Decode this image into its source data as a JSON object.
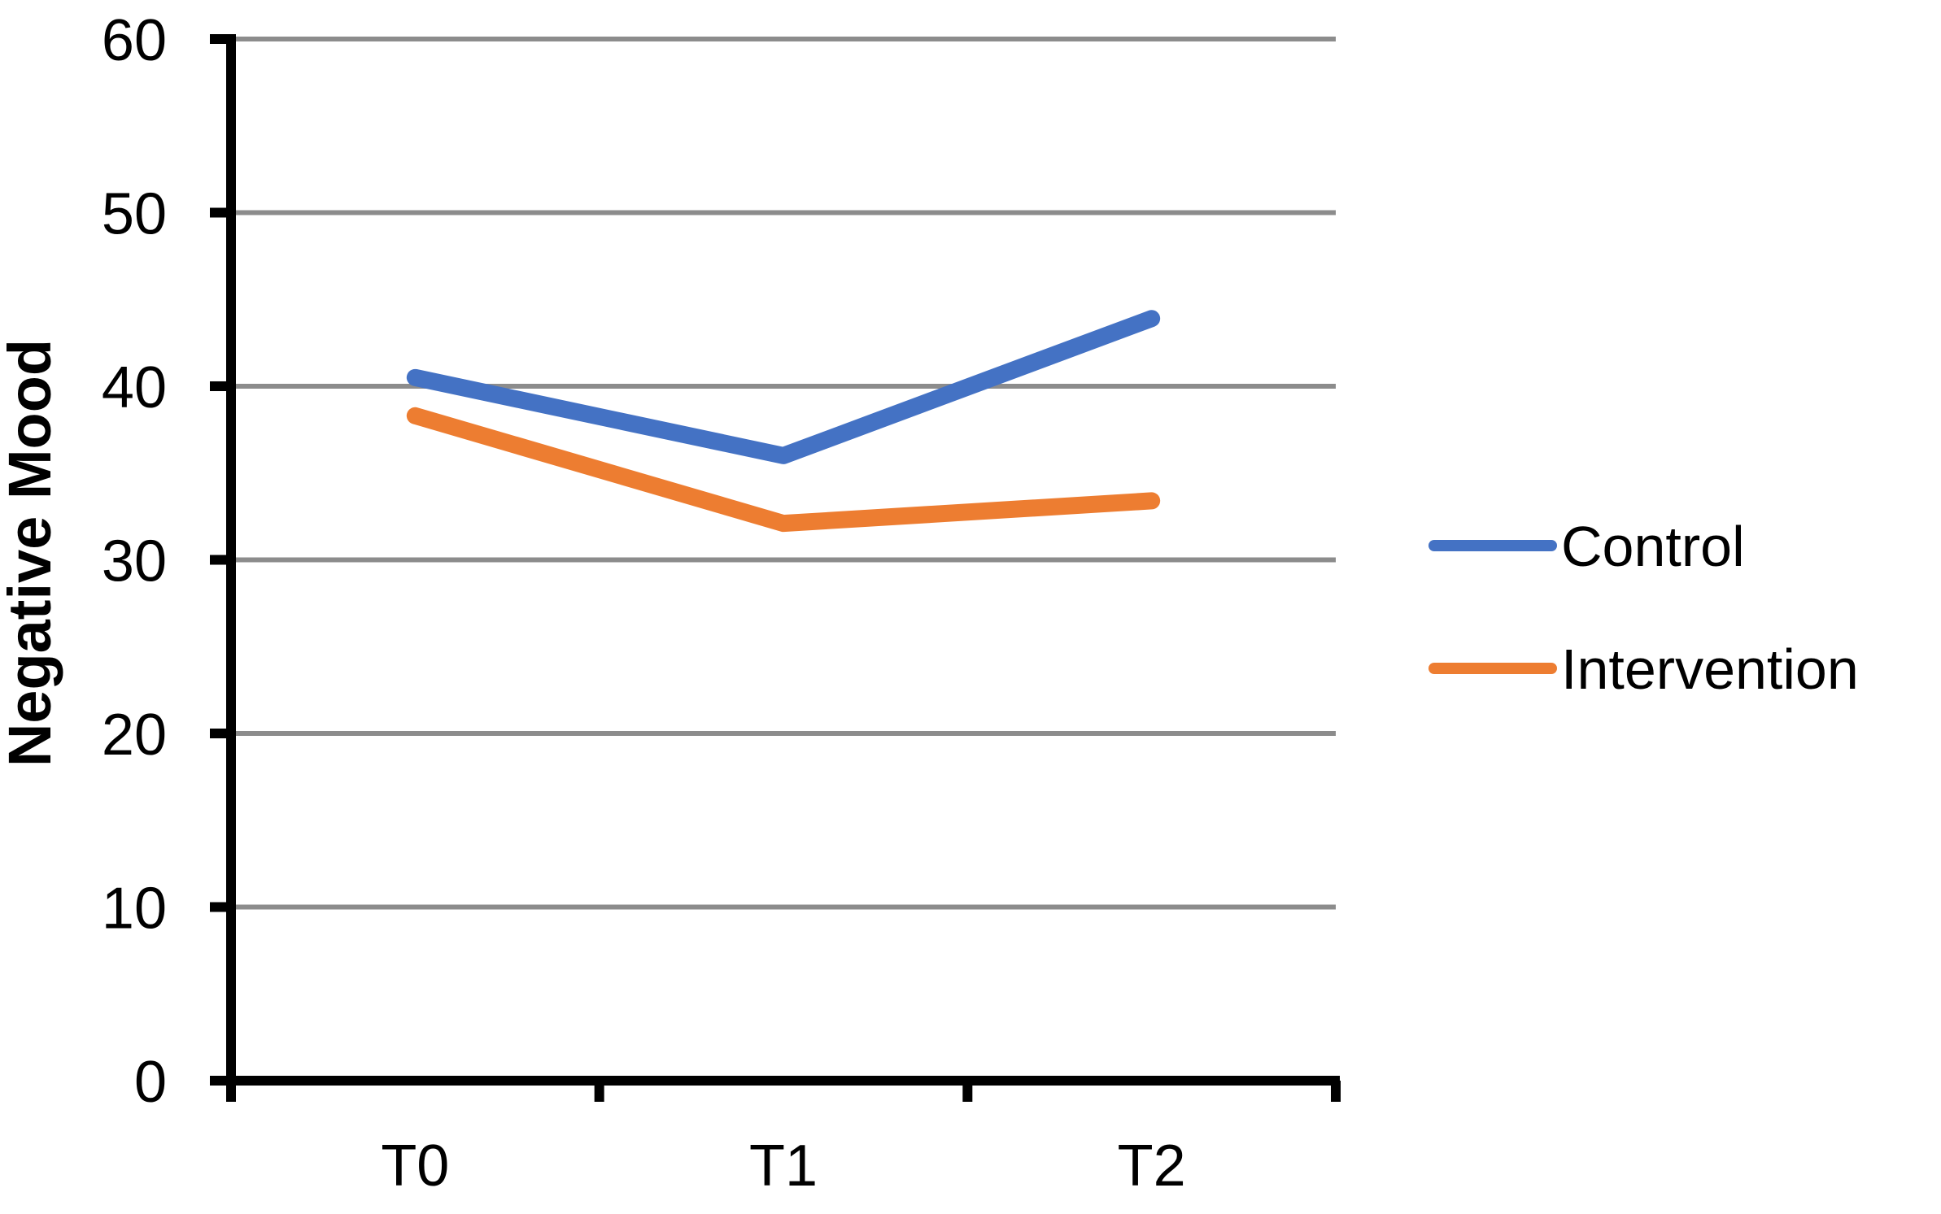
{
  "chart_data": {
    "type": "line",
    "title": "",
    "xlabel": "",
    "ylabel": "Negative Mood",
    "categories": [
      "T0",
      "T1",
      "T2"
    ],
    "series": [
      {
        "name": "Control",
        "color": "#4472C4",
        "values": [
          40.5,
          36.0,
          43.9
        ]
      },
      {
        "name": "Intervention",
        "color": "#ED7D31",
        "values": [
          38.3,
          32.1,
          33.4
        ]
      }
    ],
    "ylim": [
      0,
      60
    ],
    "yticks": [
      0,
      10,
      20,
      30,
      40,
      50,
      60
    ],
    "grid": "horizontal",
    "gridline_color": "#8C8C8C",
    "axis_color": "#000000",
    "text_color": "#000000",
    "legend_position": "right",
    "legend_entries": [
      "Control",
      "Intervention"
    ]
  }
}
